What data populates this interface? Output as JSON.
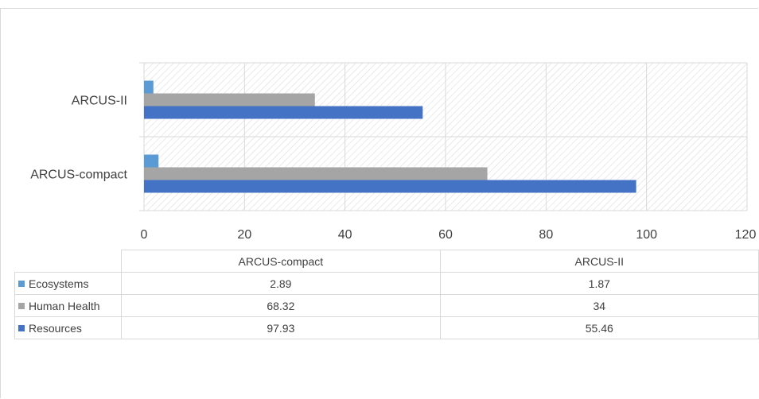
{
  "chart_data": {
    "type": "bar",
    "orientation": "horizontal",
    "categories": [
      "ARCUS-compact",
      "ARCUS-II"
    ],
    "series": [
      {
        "name": "Ecosystems",
        "values": [
          2.89,
          1.87
        ],
        "color": "#5B9BD5"
      },
      {
        "name": "Human Health",
        "values": [
          68.32,
          34
        ],
        "color": "#A5A5A5"
      },
      {
        "name": "Resources",
        "values": [
          97.93,
          55.46
        ],
        "color": "#4472C4"
      }
    ],
    "xlim": [
      0,
      120
    ],
    "ticks": [
      "0",
      "20",
      "40",
      "60",
      "80",
      "100",
      "120"
    ],
    "grid": true,
    "legend": "data-table",
    "table": {
      "columns": [
        "ARCUS-compact",
        "ARCUS-II"
      ],
      "rows": [
        {
          "label": "Ecosystems",
          "values": [
            "2.89",
            "1.87"
          ]
        },
        {
          "label": "Human Health",
          "values": [
            "68.32",
            "34"
          ]
        },
        {
          "label": "Resources",
          "values": [
            "97.93",
            "55.46"
          ]
        }
      ]
    }
  }
}
